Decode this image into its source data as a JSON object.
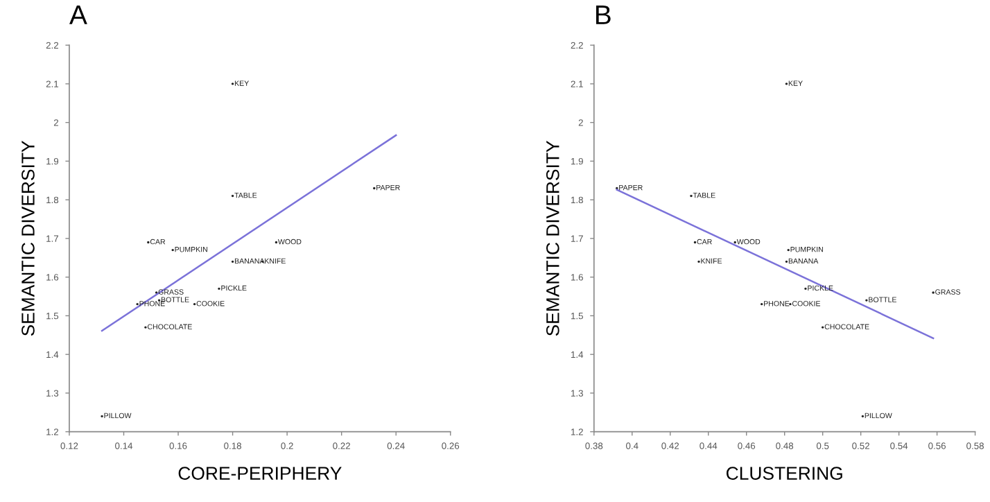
{
  "chart_data": [
    {
      "type": "scatter",
      "title": "A",
      "xlabel": "CORE-PERIPHERY",
      "ylabel": "SEMANTIC DIVERSITY",
      "xlim": [
        0.12,
        0.26
      ],
      "xticks": [
        0.12,
        0.14,
        0.16,
        0.18,
        0.2,
        0.22,
        0.24,
        0.26
      ],
      "ylim": [
        1.2,
        2.2
      ],
      "yticks": [
        1.2,
        1.3,
        1.4,
        1.5,
        1.6,
        1.7,
        1.8,
        1.9,
        2,
        2.1,
        2.2
      ],
      "grid": false,
      "legend": false,
      "series": [
        {
          "marker": "circle",
          "x": [
            0.18,
            0.18,
            0.232,
            0.149,
            0.158,
            0.196,
            0.18,
            0.191,
            0.175,
            0.152,
            0.153,
            0.145,
            0.166,
            0.148,
            0.132
          ],
          "values": [
            2.1,
            1.81,
            1.83,
            1.69,
            1.67,
            1.69,
            1.64,
            1.64,
            1.57,
            1.56,
            1.54,
            1.53,
            1.53,
            1.47,
            1.24
          ],
          "value_labels": [
            "KEY",
            "TABLE",
            "PAPER",
            "CAR",
            "PUMPKIN",
            "WOOD",
            "BANANA",
            "KNIFE",
            "PICKLE",
            "GRASS",
            "BOTTLE",
            "PHONE",
            "COOKIE",
            "CHOCOLATE",
            "PILLOW"
          ]
        },
        {
          "type": "line",
          "color": "#7b72d9",
          "x": [
            0.132,
            0.24
          ],
          "values": [
            1.461,
            1.967
          ]
        }
      ]
    },
    {
      "type": "scatter",
      "title": "B",
      "xlabel": "CLUSTERING",
      "ylabel": "SEMANTIC DIVERSITY",
      "xlim": [
        0.38,
        0.58
      ],
      "xticks": [
        0.38,
        0.4,
        0.42,
        0.44,
        0.46,
        0.48,
        0.5,
        0.52,
        0.54,
        0.56,
        0.58
      ],
      "ylim": [
        1.2,
        2.2
      ],
      "yticks": [
        1.2,
        1.3,
        1.4,
        1.5,
        1.6,
        1.7,
        1.8,
        1.9,
        2,
        2.1,
        2.2
      ],
      "grid": false,
      "legend": false,
      "series": [
        {
          "marker": "circle",
          "x": [
            0.481,
            0.392,
            0.431,
            0.433,
            0.454,
            0.435,
            0.482,
            0.481,
            0.491,
            0.558,
            0.523,
            0.468,
            0.483,
            0.5,
            0.521
          ],
          "values": [
            2.1,
            1.83,
            1.81,
            1.69,
            1.69,
            1.64,
            1.67,
            1.64,
            1.57,
            1.56,
            1.54,
            1.53,
            1.53,
            1.47,
            1.24
          ],
          "value_labels": [
            "KEY",
            "PAPER",
            "TABLE",
            "CAR",
            "WOOD",
            "KNIFE",
            "PUMPKIN",
            "BANANA",
            "PICKLE",
            "GRASS",
            "BOTTLE",
            "PHONE",
            "COOKIE",
            "CHOCOLATE",
            "PILLOW"
          ]
        },
        {
          "type": "line",
          "color": "#7b72d9",
          "x": [
            0.392,
            0.558
          ],
          "values": [
            1.826,
            1.442
          ]
        }
      ]
    }
  ]
}
